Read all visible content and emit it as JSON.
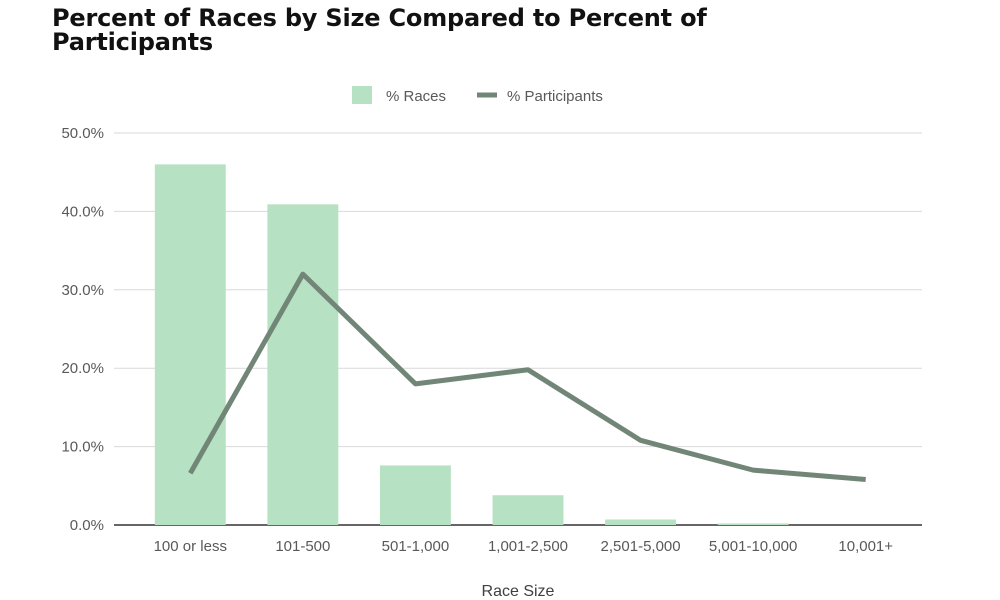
{
  "chart_data": {
    "type": "bar",
    "title": "Percent of Races by Size Compared to Percent of Participants",
    "xlabel": "Race Size",
    "ylabel": "",
    "categories": [
      "100 or less",
      "101-500",
      "501-1,000",
      "1,001-2,500",
      "2,501-5,000",
      "5,001-10,000",
      "10,001+"
    ],
    "ylim": [
      0,
      50
    ],
    "yticks": [
      "0.0%",
      "10.0%",
      "20.0%",
      "30.0%",
      "40.0%",
      "50.0%"
    ],
    "grid": true,
    "legend_position": "top",
    "series": [
      {
        "name": "% Races",
        "kind": "bar",
        "color": "#b7e1c3",
        "values": [
          46.0,
          40.9,
          7.6,
          3.8,
          0.7,
          0.2,
          0.0
        ]
      },
      {
        "name": "% Participants",
        "kind": "line",
        "color": "#728678",
        "values": [
          6.6,
          32.0,
          18.0,
          19.8,
          10.8,
          7.0,
          5.8
        ]
      }
    ]
  }
}
